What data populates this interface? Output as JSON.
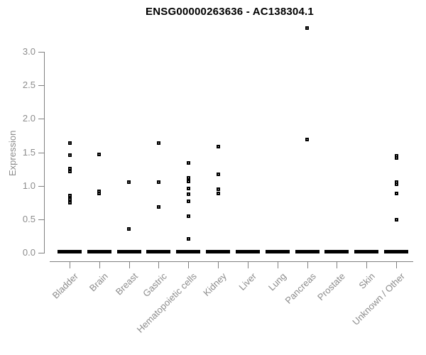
{
  "chart_data": {
    "type": "scatter",
    "title": "ENSG00000263636 - AC138304.1",
    "xlabel": "",
    "ylabel": "Expression",
    "ylim": [
      0,
      3.4
    ],
    "yticks": [
      "0.0",
      "0.5",
      "1.0",
      "1.5",
      "2.0",
      "2.5",
      "3.0"
    ],
    "grid": false,
    "legend": "none",
    "marker_style": "open-black-square",
    "categories": [
      "Bladder",
      "Brain",
      "Breast",
      "Gastric",
      "Hematopoietic cells",
      "Kidney",
      "Liver",
      "Lung",
      "Pancreas",
      "Prostate",
      "Skin",
      "Unknown / Other"
    ],
    "series": [
      {
        "name": "expression-values",
        "points": [
          {
            "category": "Bladder",
            "values": [
              1.64,
              1.46,
              1.26,
              1.21,
              0.85,
              0.8,
              0.75
            ],
            "zero_cluster": true
          },
          {
            "category": "Brain",
            "values": [
              1.47,
              0.92,
              0.88
            ],
            "zero_cluster": true
          },
          {
            "category": "Breast",
            "values": [
              1.06,
              0.36
            ],
            "zero_cluster": true
          },
          {
            "category": "Gastric",
            "values": [
              1.64,
              1.06,
              0.68
            ],
            "zero_cluster": true
          },
          {
            "category": "Hematopoietic cells",
            "values": [
              1.34,
              1.12,
              1.07,
              0.96,
              0.87,
              0.77,
              0.55,
              0.21
            ],
            "zero_cluster": true
          },
          {
            "category": "Kidney",
            "values": [
              1.58,
              1.17,
              0.95,
              0.88
            ],
            "zero_cluster": true
          },
          {
            "category": "Liver",
            "values": [],
            "zero_cluster": true
          },
          {
            "category": "Lung",
            "values": [],
            "zero_cluster": true
          },
          {
            "category": "Pancreas",
            "values": [
              3.35,
              1.69
            ],
            "zero_cluster": true
          },
          {
            "category": "Prostate",
            "values": [],
            "zero_cluster": true
          },
          {
            "category": "Skin",
            "values": [],
            "zero_cluster": true
          },
          {
            "category": "Unknown / Other",
            "values": [
              1.45,
              1.41,
              1.06,
              1.02,
              0.88,
              0.49
            ],
            "zero_cluster": true
          }
        ]
      }
    ],
    "colors": {
      "marker": "#000000",
      "axis": "#808080",
      "tick_text": "#8c8c8c",
      "title_text": "#000000"
    }
  }
}
